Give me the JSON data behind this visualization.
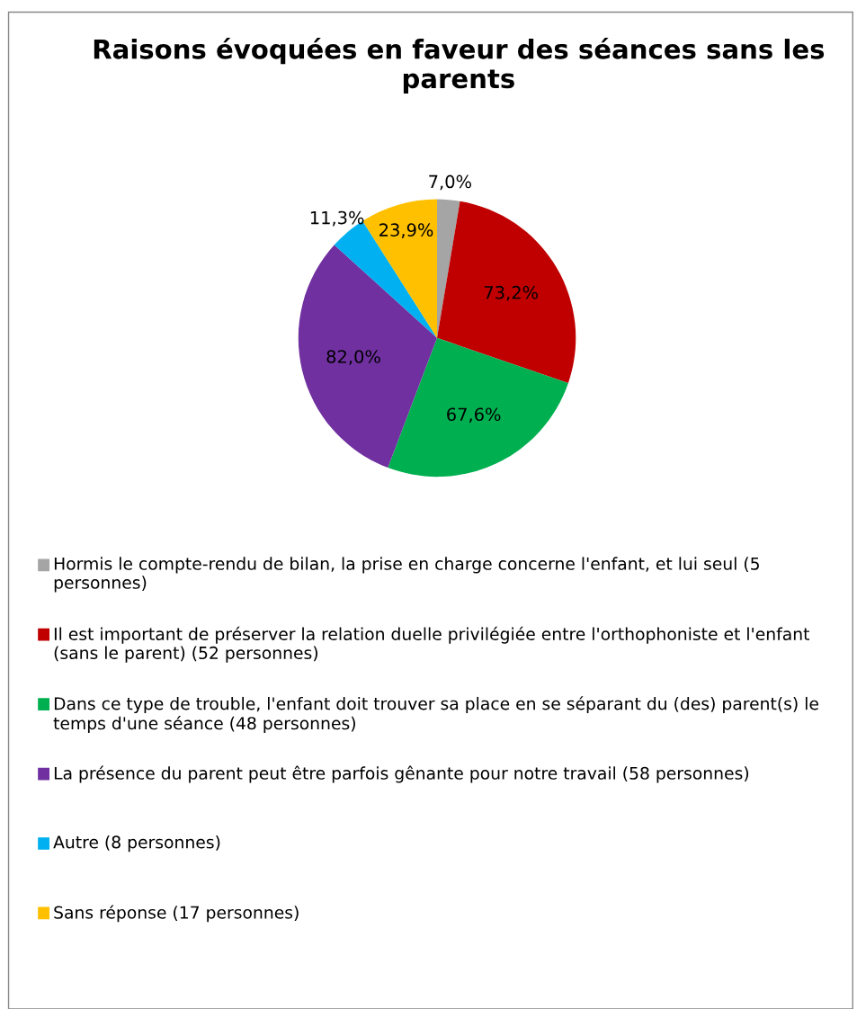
{
  "chart_data": {
    "type": "pie",
    "title": "Raisons évoquées en faveur des séances sans les parents",
    "categories": [
      "Hormis le compte-rendu de bilan, la prise en charge concerne l'enfant, et lui seul (5 personnes)",
      "Il est important de préserver la relation duelle privilégiée entre l'orthophoniste et l'enfant (sans le parent) (52 personnes)",
      "Dans ce type de trouble, l'enfant doit trouver sa place en se séparant du (des) parent(s) le temps d'une séance (48 personnes)",
      "La présence du parent peut être parfois gênante pour notre travail (58 personnes)",
      "Autre (8 personnes)",
      "Sans réponse (17 personnes)"
    ],
    "values": [
      7.0,
      73.2,
      67.6,
      82.0,
      11.3,
      23.9
    ],
    "value_labels": [
      "7,0%",
      "73,2%",
      "67,6%",
      "82,0%",
      "11,3%",
      "23,9%"
    ],
    "colors": [
      "#a5a5a5",
      "#c00000",
      "#00b050",
      "#7030a0",
      "#00b0f0",
      "#ffc000"
    ],
    "legend": "bottom"
  }
}
